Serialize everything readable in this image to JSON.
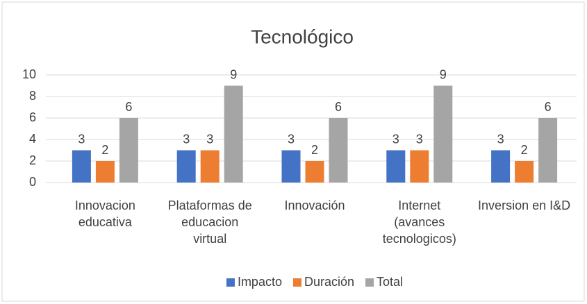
{
  "chart_data": {
    "type": "bar",
    "title": "Tecnológico",
    "categories": [
      "Innovacion educativa",
      "Plataformas de educacion virtual",
      "Innovación",
      "Internet (avances tecnologicos)",
      "Inversion en I&D"
    ],
    "series": [
      {
        "name": "Impacto",
        "color": "#4472c4",
        "values": [
          3,
          3,
          3,
          3,
          3
        ]
      },
      {
        "name": "Duración",
        "color": "#ed7d31",
        "values": [
          2,
          3,
          2,
          3,
          2
        ]
      },
      {
        "name": "Total",
        "color": "#a5a5a5",
        "values": [
          6,
          9,
          6,
          9,
          6
        ]
      }
    ],
    "ylim": [
      0,
      10
    ],
    "yticks": [
      0,
      2,
      4,
      6,
      8,
      10
    ],
    "grid": true,
    "legend": "bottom"
  }
}
